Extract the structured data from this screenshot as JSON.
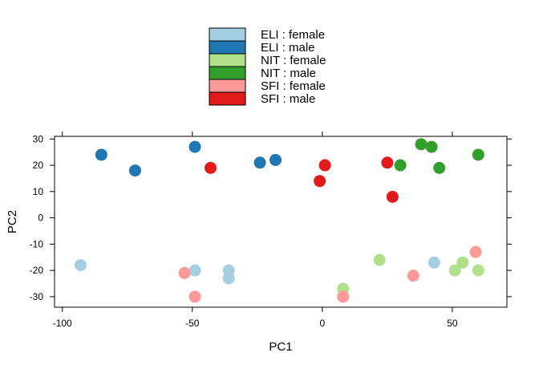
{
  "chart_data": {
    "type": "scatter",
    "title": "",
    "xlabel": "PC1",
    "ylabel": "PC2",
    "xlim": [
      -103,
      71
    ],
    "ylim": [
      -34,
      31
    ],
    "xticks": [
      -100,
      -50,
      0,
      50
    ],
    "yticks": [
      -30,
      -20,
      -10,
      0,
      10,
      20,
      30
    ],
    "grid": false,
    "legend_position": "top",
    "series": [
      {
        "name": "ELI : female",
        "color": "#a6cee3",
        "points": [
          [
            -93,
            -18
          ],
          [
            -49,
            -20
          ],
          [
            -36,
            -20
          ],
          [
            -36,
            -23
          ],
          [
            43,
            -17
          ]
        ]
      },
      {
        "name": "ELI : male",
        "color": "#1f78b4",
        "points": [
          [
            -85,
            24
          ],
          [
            -72,
            18
          ],
          [
            -49,
            27
          ],
          [
            -24,
            21
          ],
          [
            -18,
            22
          ]
        ]
      },
      {
        "name": "NIT : female",
        "color": "#b2df8a",
        "points": [
          [
            22,
            -16
          ],
          [
            51,
            -20
          ],
          [
            54,
            -17
          ],
          [
            60,
            -20
          ],
          [
            8,
            -27
          ]
        ]
      },
      {
        "name": "NIT : male",
        "color": "#33a02c",
        "points": [
          [
            38,
            28
          ],
          [
            42,
            27
          ],
          [
            30,
            20
          ],
          [
            45,
            19
          ],
          [
            60,
            24
          ]
        ]
      },
      {
        "name": "SFI : female",
        "color": "#fb9a99",
        "points": [
          [
            -53,
            -21
          ],
          [
            -49,
            -30
          ],
          [
            8,
            -30
          ],
          [
            35,
            -22
          ],
          [
            59,
            -13
          ]
        ]
      },
      {
        "name": "SFI : male",
        "color": "#e31a1c",
        "points": [
          [
            -43,
            19
          ],
          [
            1,
            20
          ],
          [
            -1,
            14
          ],
          [
            25,
            21
          ],
          [
            27,
            8
          ]
        ]
      }
    ]
  }
}
